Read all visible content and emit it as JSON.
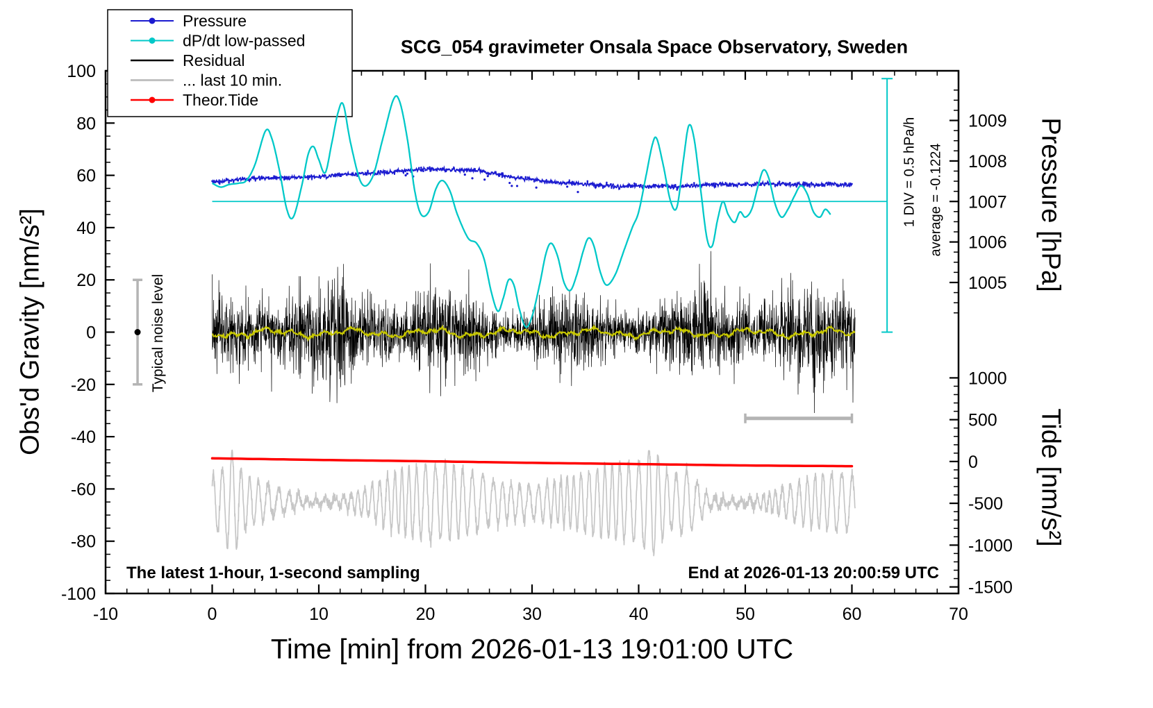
{
  "title": "SCG_054 gravimeter Onsala Space Observatory, Sweden",
  "annotations": {
    "sampling": "The latest 1-hour, 1-second sampling",
    "end_time": "End at 2026-01-13 20:00:59 UTC",
    "div_scale": "1 DIV = 0.5 hPa/h",
    "average": "average = -0.1224",
    "noise_level": "Typical noise level"
  },
  "legend": {
    "items": [
      {
        "label": "Pressure",
        "color": "#1b1bd0",
        "marker": "line-dot",
        "line_width": 2
      },
      {
        "label": "dP/dt low-passed",
        "color": "#00c8c8",
        "marker": "line-dot",
        "line_width": 2
      },
      {
        "label": "Residual",
        "color": "#000000",
        "marker": "line",
        "line_width": 2.5
      },
      {
        "label": "... last 10 min.",
        "color": "#c0c0c0",
        "marker": "line",
        "line_width": 3
      },
      {
        "label": "Theor.Tide",
        "color": "#ff0000",
        "marker": "line-dot",
        "line_width": 2.5
      }
    ]
  },
  "chart_data": {
    "type": "line",
    "axes": {
      "x": {
        "label": "Time [min] from 2026-01-13 19:01:00 UTC",
        "min": -10,
        "max": 70,
        "major_step": 10,
        "minor_step": 2
      },
      "y": {
        "label": "Obs'd Gravity [nm/s²]",
        "min": -100,
        "max": 100,
        "major_step": 20,
        "minor_step": 5
      },
      "pressure": {
        "label": "Pressure [hPa]",
        "ref_value": 1007,
        "ref_gravity": 50,
        "gravity_per_unit": 15.5,
        "tick_min": 1004.25,
        "tick_max": 1009.75,
        "minor_step": 0.25,
        "major_ticks": [
          1005,
          1006,
          1007,
          1008,
          1009
        ],
        "axis_floor_gravity": 6
      },
      "tide": {
        "label": "Tide [nm/s²]",
        "ref_value": 0,
        "ref_gravity": -49.5,
        "gravity_per_unit": 0.032,
        "tick_min": -1500,
        "tick_max": 1000,
        "minor_step": 100,
        "major_ticks": [
          1000,
          500,
          0,
          -500,
          -1000,
          -1500
        ],
        "axis_ceil_gravity": -14
      }
    },
    "reference_line": {
      "pressure_hpa": 1007,
      "gravity_y": 50,
      "x_start": 0,
      "x_end": 63.3,
      "color": "#00c8c8"
    },
    "series": [
      {
        "name": "pressure",
        "label": "Pressure",
        "color": "#1b1bd0",
        "style": "dotted-trace",
        "unit": "hPa",
        "jitter_sigma_gravity": 0.45,
        "seed": 3,
        "points_hpa": [
          [
            0,
            1007.48
          ],
          [
            2,
            1007.54
          ],
          [
            4,
            1007.57
          ],
          [
            6,
            1007.58
          ],
          [
            8,
            1007.6
          ],
          [
            10,
            1007.61
          ],
          [
            12,
            1007.66
          ],
          [
            14,
            1007.68
          ],
          [
            16,
            1007.71
          ],
          [
            18,
            1007.76
          ],
          [
            20,
            1007.79
          ],
          [
            22,
            1007.79
          ],
          [
            24,
            1007.77
          ],
          [
            26,
            1007.71
          ],
          [
            28,
            1007.61
          ],
          [
            30,
            1007.54
          ],
          [
            32,
            1007.48
          ],
          [
            34,
            1007.45
          ],
          [
            36,
            1007.41
          ],
          [
            38,
            1007.37
          ],
          [
            40,
            1007.37
          ],
          [
            42,
            1007.39
          ],
          [
            44,
            1007.37
          ],
          [
            46,
            1007.4
          ],
          [
            48,
            1007.42
          ],
          [
            50,
            1007.41
          ],
          [
            52,
            1007.44
          ],
          [
            54,
            1007.42
          ],
          [
            56,
            1007.41
          ],
          [
            58,
            1007.42
          ],
          [
            60,
            1007.42
          ]
        ]
      },
      {
        "name": "dpdt_lowpassed",
        "label": "dP/dt low-passed",
        "color": "#00c8c8",
        "style": "smooth-line",
        "unit": "gravity-axis units (1 DIV = 0.5 hPa/h)",
        "points": [
          [
            0,
            57
          ],
          [
            0.8,
            55.5
          ],
          [
            1.6,
            56.5
          ],
          [
            2.5,
            57
          ],
          [
            3.2,
            58
          ],
          [
            4,
            64
          ],
          [
            5,
            77
          ],
          [
            5.6,
            74
          ],
          [
            6.3,
            62
          ],
          [
            7,
            47
          ],
          [
            7.6,
            44
          ],
          [
            8.4,
            56
          ],
          [
            9,
            68
          ],
          [
            9.5,
            71
          ],
          [
            10,
            66
          ],
          [
            10.6,
            61
          ],
          [
            11.2,
            72
          ],
          [
            11.8,
            84
          ],
          [
            12.3,
            87
          ],
          [
            13,
            72
          ],
          [
            14,
            57
          ],
          [
            15,
            59
          ],
          [
            16,
            74
          ],
          [
            17,
            89
          ],
          [
            17.6,
            88
          ],
          [
            18.3,
            74
          ],
          [
            19,
            54
          ],
          [
            19.6,
            45
          ],
          [
            20.3,
            46
          ],
          [
            21,
            55
          ],
          [
            21.6,
            58
          ],
          [
            22.3,
            54
          ],
          [
            23,
            45
          ],
          [
            24,
            36
          ],
          [
            24.8,
            34
          ],
          [
            25.5,
            28
          ],
          [
            26.2,
            15
          ],
          [
            26.8,
            8
          ],
          [
            27.3,
            13
          ],
          [
            27.8,
            20
          ],
          [
            28.3,
            18
          ],
          [
            28.8,
            9
          ],
          [
            29.4,
            2
          ],
          [
            30,
            6
          ],
          [
            30.7,
            18
          ],
          [
            31.3,
            30
          ],
          [
            31.8,
            34
          ],
          [
            32.4,
            29
          ],
          [
            33,
            19
          ],
          [
            33.6,
            16
          ],
          [
            34.2,
            22
          ],
          [
            34.8,
            31
          ],
          [
            35.3,
            36
          ],
          [
            35.8,
            33
          ],
          [
            36.4,
            23
          ],
          [
            37,
            18
          ],
          [
            37.8,
            22
          ],
          [
            38.6,
            31
          ],
          [
            39.4,
            40
          ],
          [
            40,
            46
          ],
          [
            40.7,
            60
          ],
          [
            41.3,
            72
          ],
          [
            41.7,
            74
          ],
          [
            42.3,
            64
          ],
          [
            43,
            50
          ],
          [
            43.6,
            48
          ],
          [
            44.2,
            66
          ],
          [
            44.7,
            79
          ],
          [
            45.2,
            74
          ],
          [
            45.8,
            55
          ],
          [
            46.4,
            36
          ],
          [
            46.9,
            33
          ],
          [
            47.4,
            43
          ],
          [
            47.9,
            50
          ],
          [
            48.4,
            45
          ],
          [
            49,
            42
          ],
          [
            49.5,
            46
          ],
          [
            50,
            44
          ],
          [
            50.6,
            47
          ],
          [
            51.2,
            56
          ],
          [
            51.7,
            62
          ],
          [
            52.2,
            59
          ],
          [
            52.8,
            49
          ],
          [
            53.4,
            44
          ],
          [
            54,
            47
          ],
          [
            54.6,
            52
          ],
          [
            55.2,
            56
          ],
          [
            55.8,
            53
          ],
          [
            56.4,
            46
          ],
          [
            57,
            44
          ],
          [
            57.5,
            47
          ],
          [
            58,
            45
          ]
        ]
      },
      {
        "name": "residual",
        "label": "Residual",
        "color": "#000000",
        "style": "noise-trace",
        "unit": "nm/s²",
        "synthesis": {
          "n": 3000,
          "x_start": 0,
          "x_end": 60.3,
          "mean": 0,
          "sigma": 6.3,
          "spike_prob": 0.012,
          "spike_gain": 2.4,
          "max_abs": 31,
          "seed": 7
        }
      },
      {
        "name": "residual_lowpass",
        "label": "Residual low-passed",
        "color": "#c8c800",
        "style": "smooth-line",
        "unit": "nm/s²",
        "synthesis": {
          "mean": -0.3,
          "amplitudes": [
            1.0,
            0.7,
            0.5
          ],
          "periods": [
            7.5,
            2.8,
            1.1
          ],
          "noise_sigma": 0.25,
          "x_start": 0,
          "x_end": 60.3,
          "step": 0.05,
          "seed": 11
        }
      },
      {
        "name": "last_10_min",
        "label": "... last 10 min.",
        "color": "#c6c6c6",
        "style": "noise-trace",
        "unit": "tide nm/s² (right axis)",
        "synthesis": {
          "n": 2600,
          "x_start": 0,
          "x_end": 60.3,
          "center_gravity": -65,
          "seed": 23,
          "min_gravity": -86,
          "max_gravity": -34
        }
      },
      {
        "name": "theor_tide",
        "label": "Theor.Tide",
        "color": "#ff0000",
        "style": "thick-line",
        "unit": "nm/s² (tide axis)",
        "points_tide": [
          [
            0,
            38
          ],
          [
            10,
            19
          ],
          [
            20,
            3
          ],
          [
            30,
            -16
          ],
          [
            40,
            -31
          ],
          [
            50,
            -47
          ],
          [
            60,
            -56
          ]
        ]
      }
    ],
    "scale_bars": {
      "pressure_rate_bar": {
        "x": 63.3,
        "gravity_top": 97,
        "gravity_bottom": 0,
        "color": "#00c8c8"
      },
      "ten_min_bar": {
        "x_start": 50,
        "x_end": 60,
        "gravity_y": -33,
        "color": "#b4b4b4"
      },
      "noise_level_bar": {
        "x": -7,
        "gravity_low": -20,
        "gravity_high": 20,
        "dot_gravity": 0,
        "bar_color": "#b4b4b4",
        "dot_color": "#000000"
      }
    }
  }
}
